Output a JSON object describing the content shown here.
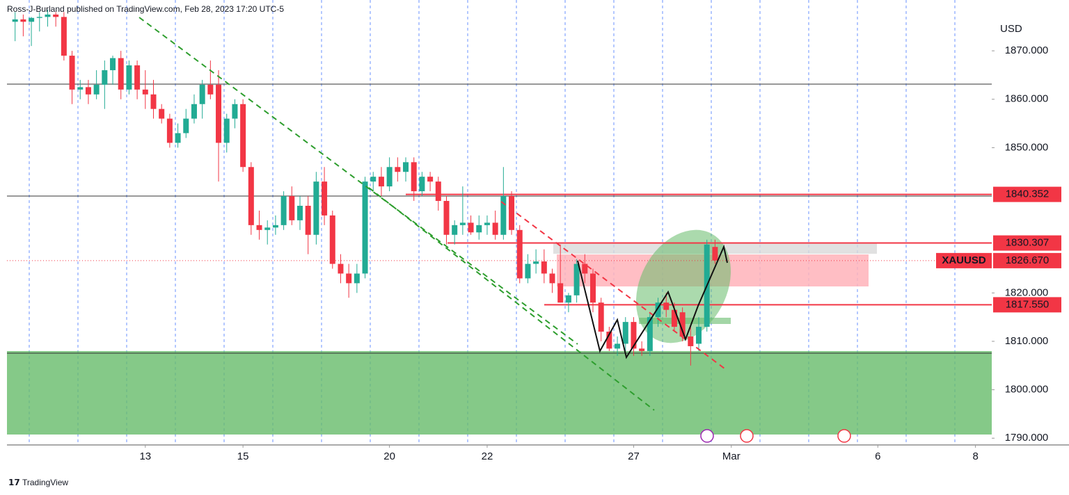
{
  "header": {
    "byline": "Ross-J-Burland published on TradingView.com, Feb 28, 2023 17:20 UTC-5"
  },
  "footer": {
    "brand": "TradingView"
  },
  "chart_data": {
    "type": "candlestick",
    "currency": "USD",
    "up_color": "#22ab94",
    "down_color": "#f23645",
    "ylim": [
      1788.6,
      1880.5
    ],
    "yticks": [
      {
        "value": 1870,
        "label": "1870.000"
      },
      {
        "value": 1860,
        "label": "1860.000"
      },
      {
        "value": 1850,
        "label": "1850.000"
      },
      {
        "value": 1820,
        "label": "1820.000"
      },
      {
        "value": 1810,
        "label": "1810.000"
      },
      {
        "value": 1800,
        "label": "1800.000"
      },
      {
        "value": 1790,
        "label": "1790.000"
      }
    ],
    "xlim": [
      -1,
      120
    ],
    "xticks": [
      {
        "value": 16,
        "label": "13"
      },
      {
        "value": 28,
        "label": "15"
      },
      {
        "value": 46,
        "label": "20"
      },
      {
        "value": 58,
        "label": "22"
      },
      {
        "value": 76,
        "label": "27"
      },
      {
        "value": 88,
        "label": "Mar"
      },
      {
        "value": 106,
        "label": "6"
      },
      {
        "value": 118,
        "label": "8"
      }
    ],
    "levels": [
      {
        "value": 1840.352,
        "label": "1840.352"
      },
      {
        "value": 1830.307,
        "label": "1830.307"
      },
      {
        "value": 1817.55,
        "label": "1817.550"
      }
    ],
    "last": {
      "symbol": "XAUUSD",
      "value": 1826.67,
      "label": "1826.670"
    },
    "candles": [
      [
        1876,
        1878,
        1872,
        1876.5
      ],
      [
        1876.5,
        1877.5,
        1873,
        1876
      ],
      [
        1876,
        1877,
        1871,
        1876.8
      ],
      [
        1876.8,
        1878,
        1874,
        1877
      ],
      [
        1877,
        1878.5,
        1875,
        1877.5
      ],
      [
        1877.5,
        1878,
        1875,
        1877
      ],
      [
        1877,
        1878,
        1868,
        1869
      ],
      [
        1869,
        1870,
        1859,
        1862
      ],
      [
        1862,
        1864,
        1860,
        1862.5
      ],
      [
        1862.5,
        1864,
        1859,
        1861
      ],
      [
        1861,
        1866,
        1860,
        1863
      ],
      [
        1863,
        1868,
        1858,
        1866
      ],
      [
        1866,
        1869,
        1863,
        1868.5
      ],
      [
        1868.5,
        1870,
        1860,
        1862
      ],
      [
        1862,
        1868,
        1861,
        1867
      ],
      [
        1867,
        1868,
        1860,
        1862
      ],
      [
        1862,
        1866,
        1858,
        1861
      ],
      [
        1861,
        1864,
        1856,
        1858
      ],
      [
        1858,
        1859,
        1855,
        1856
      ],
      [
        1856,
        1857,
        1850,
        1851
      ],
      [
        1851,
        1855,
        1850,
        1853
      ],
      [
        1853,
        1858,
        1852,
        1856
      ],
      [
        1856,
        1861,
        1855,
        1859
      ],
      [
        1859,
        1864,
        1856,
        1863
      ],
      [
        1863,
        1868,
        1860,
        1861
      ],
      [
        1863,
        1866,
        1843,
        1851
      ],
      [
        1851,
        1857,
        1849,
        1856
      ],
      [
        1856,
        1860,
        1854,
        1859
      ],
      [
        1859,
        1860,
        1845,
        1846
      ],
      [
        1846,
        1847,
        1832,
        1834
      ],
      [
        1834,
        1837,
        1831,
        1833
      ],
      [
        1833,
        1835,
        1830,
        1833.5
      ],
      [
        1833.5,
        1836,
        1832,
        1834
      ],
      [
        1834,
        1841,
        1833,
        1840
      ],
      [
        1840,
        1842,
        1834,
        1835
      ],
      [
        1835,
        1840,
        1833,
        1838
      ],
      [
        1838,
        1840,
        1828,
        1832
      ],
      [
        1832,
        1845,
        1830,
        1843
      ],
      [
        1843,
        1846,
        1834,
        1836
      ],
      [
        1836,
        1837,
        1825,
        1826
      ],
      [
        1826,
        1828,
        1822,
        1824
      ],
      [
        1824,
        1826,
        1819,
        1822
      ],
      [
        1822,
        1826,
        1820,
        1824
      ],
      [
        1824,
        1844,
        1823,
        1843
      ],
      [
        1843,
        1845,
        1841,
        1844
      ],
      [
        1844,
        1846,
        1840,
        1842
      ],
      [
        1842,
        1848,
        1841,
        1846
      ],
      [
        1846,
        1848,
        1843,
        1845
      ],
      [
        1845,
        1848,
        1843,
        1847
      ],
      [
        1847,
        1848,
        1839,
        1841
      ],
      [
        1841,
        1845,
        1840,
        1844
      ],
      [
        1844,
        1845,
        1841,
        1843
      ],
      [
        1843,
        1844,
        1837,
        1839
      ],
      [
        1839,
        1840,
        1830,
        1832
      ],
      [
        1832,
        1835,
        1830,
        1834
      ],
      [
        1834,
        1842,
        1832,
        1834.5
      ],
      [
        1834.5,
        1836,
        1832,
        1832.5
      ],
      [
        1832.5,
        1836,
        1831,
        1834
      ],
      [
        1834,
        1836,
        1832,
        1834.5
      ],
      [
        1834.5,
        1837,
        1831,
        1832
      ],
      [
        1832,
        1846,
        1831,
        1840
      ],
      [
        1840,
        1841,
        1832,
        1833
      ],
      [
        1833,
        1834,
        1822,
        1823
      ],
      [
        1823,
        1828,
        1822,
        1826
      ],
      [
        1826,
        1829,
        1824,
        1826.5
      ],
      [
        1826.5,
        1829,
        1822,
        1824
      ],
      [
        1824,
        1825,
        1820,
        1822
      ],
      [
        1822,
        1830,
        1818,
        1818
      ],
      [
        1818,
        1820,
        1816,
        1819.5
      ],
      [
        1819.5,
        1827,
        1818,
        1826
      ],
      [
        1826,
        1828,
        1822,
        1824
      ],
      [
        1824,
        1825,
        1816,
        1818
      ],
      [
        1818,
        1819,
        1810,
        1812
      ],
      [
        1812,
        1813,
        1808,
        1808.5
      ],
      [
        1808.5,
        1811,
        1807,
        1809.5
      ],
      [
        1809.5,
        1815,
        1808,
        1814
      ],
      [
        1814,
        1815,
        1807,
        1808.5
      ],
      [
        1808.5,
        1810,
        1807,
        1808
      ],
      [
        1808,
        1816,
        1807,
        1815
      ],
      [
        1815,
        1819,
        1813,
        1818
      ],
      [
        1818,
        1820,
        1815,
        1816.5
      ],
      [
        1816.5,
        1818,
        1812,
        1813
      ],
      [
        1816,
        1817,
        1810,
        1811
      ],
      [
        1811,
        1813,
        1805,
        1809
      ],
      [
        1809.5,
        1815,
        1808,
        1813
      ],
      [
        1813,
        1831,
        1812,
        1830
      ],
      [
        1829.5,
        1831,
        1826,
        1826.7
      ]
    ]
  }
}
